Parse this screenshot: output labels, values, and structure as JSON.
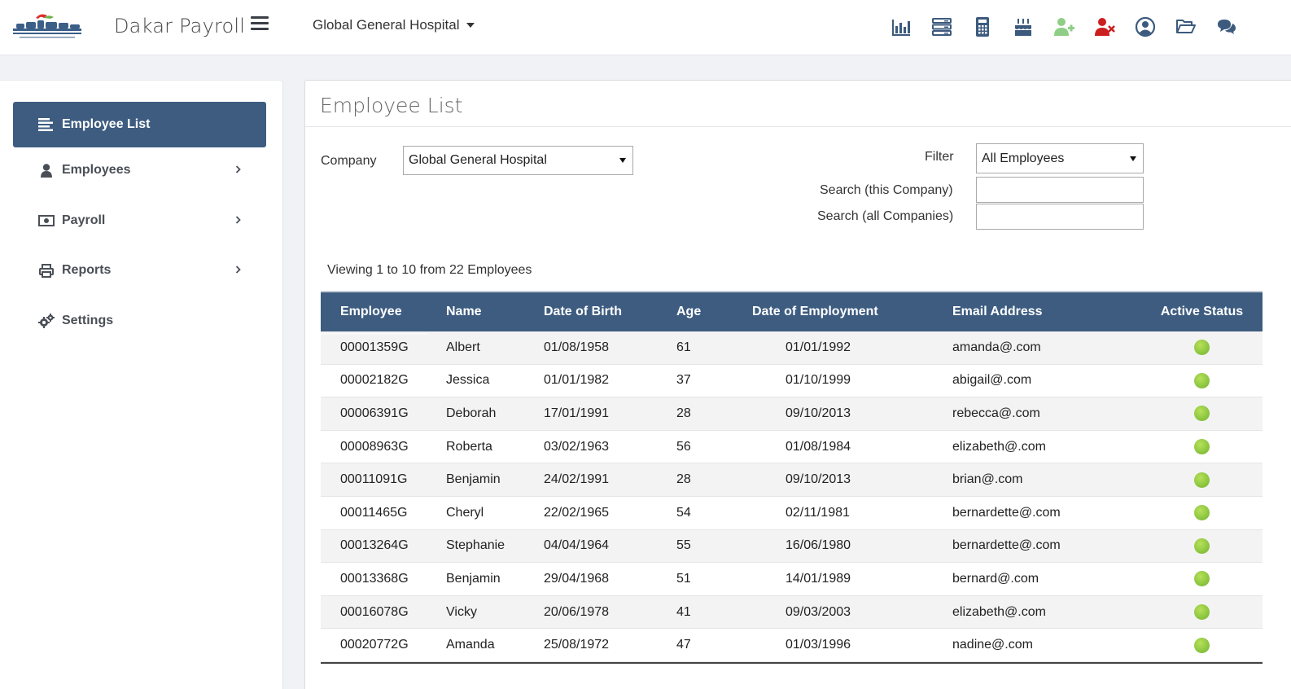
{
  "header": {
    "app_title": "Dakar Payroll",
    "company_switch": "Global General Hospital",
    "icons": [
      "bar-chart-icon",
      "server-icon",
      "calculator-icon",
      "birthday-cake-icon",
      "add-user-icon",
      "remove-user-icon",
      "user-circle-icon",
      "folder-open-icon",
      "comments-icon"
    ],
    "colors": {
      "add_user": "#8fce86",
      "remove_user": "#cc1f1f",
      "icon": "#3c5a7d"
    }
  },
  "sidebar": {
    "items": [
      {
        "label": "Employee List",
        "icon": "list-icon",
        "active": true,
        "has_chevron": false
      },
      {
        "label": "Employees",
        "icon": "user-icon",
        "active": false,
        "has_chevron": true
      },
      {
        "label": "Payroll",
        "icon": "money-icon",
        "active": false,
        "has_chevron": true
      },
      {
        "label": "Reports",
        "icon": "print-icon",
        "active": false,
        "has_chevron": true
      },
      {
        "label": "Settings",
        "icon": "cogs-icon",
        "active": false,
        "has_chevron": false
      }
    ]
  },
  "main": {
    "title": "Employee List",
    "company_label": "Company",
    "company_value": "Global General Hospital",
    "filter_label": "Filter",
    "filter_value": "All Employees",
    "search_company_label": "Search (this Company)",
    "search_company_value": "",
    "search_all_label": "Search (all Companies)",
    "search_all_value": "",
    "viewing": "Viewing 1 to 10 from 22 Employees"
  },
  "table": {
    "columns": [
      "Employee",
      "Name",
      "Date of Birth",
      "Age",
      "Date of Employment",
      "Email Address",
      "Active Status"
    ],
    "rows": [
      {
        "employee": "00001359G",
        "name": "Albert",
        "dob": "01/08/1958",
        "age": "61",
        "doe": "01/01/1992",
        "email": "amanda@.com",
        "active": true
      },
      {
        "employee": "00002182G",
        "name": "Jessica",
        "dob": "01/01/1982",
        "age": "37",
        "doe": "01/10/1999",
        "email": "abigail@.com",
        "active": true
      },
      {
        "employee": "00006391G",
        "name": "Deborah",
        "dob": "17/01/1991",
        "age": "28",
        "doe": "09/10/2013",
        "email": "rebecca@.com",
        "active": true
      },
      {
        "employee": "00008963G",
        "name": "Roberta",
        "dob": "03/02/1963",
        "age": "56",
        "doe": "01/08/1984",
        "email": "elizabeth@.com",
        "active": true
      },
      {
        "employee": "00011091G",
        "name": "Benjamin",
        "dob": "24/02/1991",
        "age": "28",
        "doe": "09/10/2013",
        "email": "brian@.com",
        "active": true
      },
      {
        "employee": "00011465G",
        "name": "Cheryl",
        "dob": "22/02/1965",
        "age": "54",
        "doe": "02/11/1981",
        "email": "bernardette@.com",
        "active": true
      },
      {
        "employee": "00013264G",
        "name": "Stephanie",
        "dob": "04/04/1964",
        "age": "55",
        "doe": "16/06/1980",
        "email": "bernardette@.com",
        "active": true
      },
      {
        "employee": "00013368G",
        "name": "Benjamin",
        "dob": "29/04/1968",
        "age": "51",
        "doe": "14/01/1989",
        "email": "bernard@.com",
        "active": true
      },
      {
        "employee": "00016078G",
        "name": "Vicky",
        "dob": "20/06/1978",
        "age": "41",
        "doe": "09/03/2003",
        "email": "elizabeth@.com",
        "active": true
      },
      {
        "employee": "00020772G",
        "name": "Amanda",
        "dob": "25/08/1972",
        "age": "47",
        "doe": "01/03/1996",
        "email": "nadine@.com",
        "active": true
      }
    ]
  }
}
